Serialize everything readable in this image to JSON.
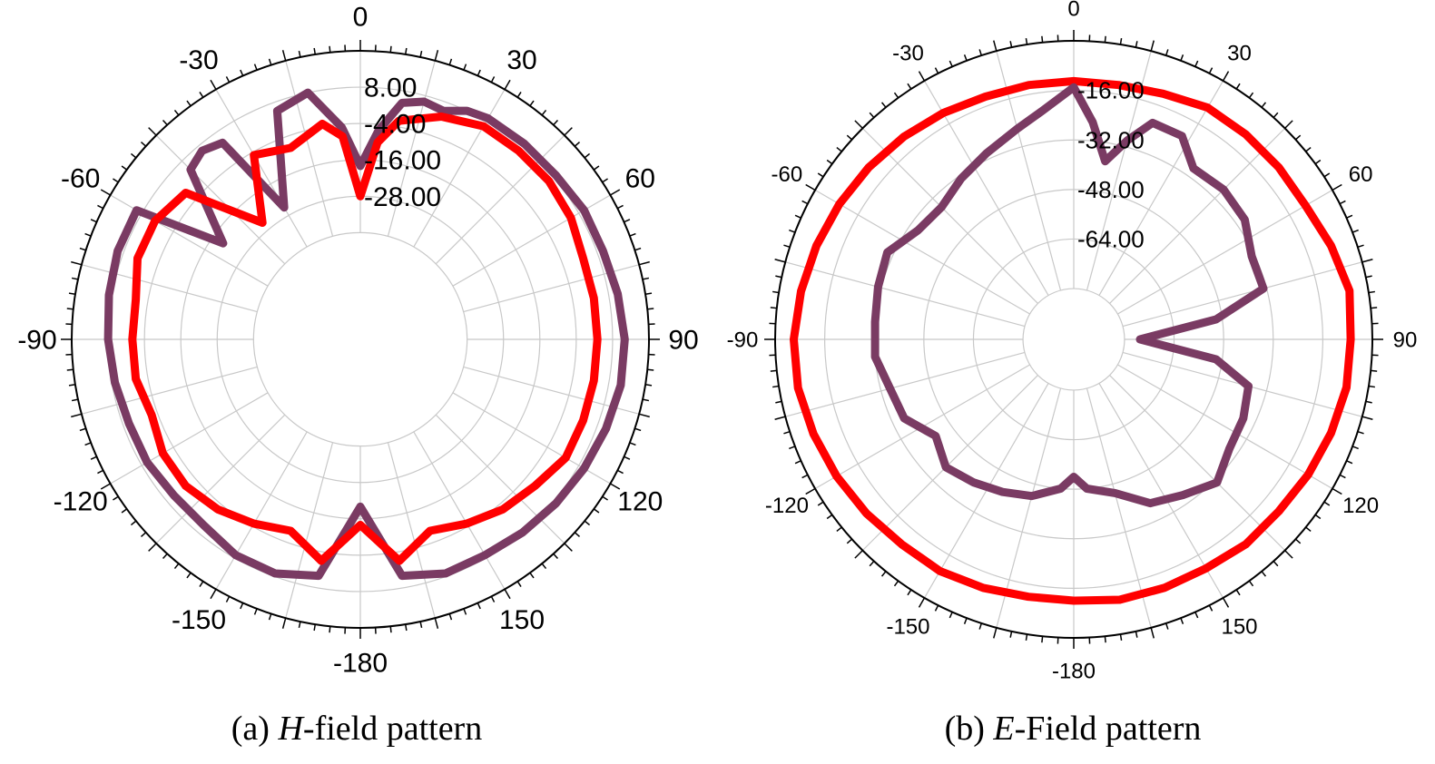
{
  "colors": {
    "red_series": "#ff0000",
    "purple_series": "#7a3b63",
    "grid": "#c8c8c8",
    "axis": "#000000"
  },
  "chart_data": [
    {
      "type": "polar-line",
      "caption": {
        "prefix": "(a) ",
        "italic": "H",
        "suffix": "-field pattern"
      },
      "angle_ticks": [
        "0",
        "30",
        "60",
        "90",
        "120",
        "150",
        "-180",
        "-150",
        "-120",
        "-90",
        "-60",
        "-30"
      ],
      "radial_labels": [
        "8.00",
        "-4.00",
        "-16.00",
        "-28.00"
      ],
      "radial_range": [
        -40,
        20
      ],
      "radial_ticks": [
        8,
        -4,
        -16,
        -28
      ],
      "grid": true,
      "series": [
        {
          "color_key": "purple_series",
          "points": [
            [
              0,
              -18
            ],
            [
              5,
              -6
            ],
            [
              10,
              4
            ],
            [
              15,
              6
            ],
            [
              20,
              5
            ],
            [
              25,
              8
            ],
            [
              30,
              9
            ],
            [
              40,
              9
            ],
            [
              50,
              9
            ],
            [
              60,
              10
            ],
            [
              70,
              10
            ],
            [
              80,
              11
            ],
            [
              90,
              12
            ],
            [
              100,
              12
            ],
            [
              110,
              11
            ],
            [
              120,
              10
            ],
            [
              130,
              9
            ],
            [
              140,
              8
            ],
            [
              150,
              7
            ],
            [
              160,
              7
            ],
            [
              170,
              4
            ],
            [
              180,
              -20
            ],
            [
              -170,
              4
            ],
            [
              -160,
              7
            ],
            [
              -150,
              7
            ],
            [
              -140,
              5
            ],
            [
              -130,
              5
            ],
            [
              -120,
              6
            ],
            [
              -110,
              6
            ],
            [
              -100,
              7
            ],
            [
              -90,
              8
            ],
            [
              -80,
              9
            ],
            [
              -70,
              10
            ],
            [
              -60,
              10
            ],
            [
              -55,
              -20
            ],
            [
              -45,
              4
            ],
            [
              -40,
              6
            ],
            [
              -35,
              4
            ],
            [
              -30,
              -25
            ],
            [
              -20,
              5
            ],
            [
              -12,
              8
            ],
            [
              -5,
              -5
            ]
          ]
        },
        {
          "color_key": "red_series",
          "points": [
            [
              0,
              -28
            ],
            [
              5,
              -10
            ],
            [
              10,
              -2
            ],
            [
              20,
              3
            ],
            [
              30,
              6
            ],
            [
              40,
              6
            ],
            [
              50,
              6
            ],
            [
              60,
              5
            ],
            [
              70,
              3
            ],
            [
              80,
              3
            ],
            [
              90,
              3
            ],
            [
              100,
              3
            ],
            [
              110,
              3
            ],
            [
              120,
              3
            ],
            [
              130,
              0
            ],
            [
              140,
              -2
            ],
            [
              150,
              -5
            ],
            [
              160,
              -8
            ],
            [
              170,
              -1
            ],
            [
              180,
              -14
            ],
            [
              -170,
              -1
            ],
            [
              -160,
              -8
            ],
            [
              -150,
              -5
            ],
            [
              -140,
              -2
            ],
            [
              -130,
              0
            ],
            [
              -120,
              0
            ],
            [
              -110,
              -2
            ],
            [
              -100,
              0
            ],
            [
              -90,
              0
            ],
            [
              -80,
              0
            ],
            [
              -70,
              3
            ],
            [
              -60,
              3
            ],
            [
              -50,
              0
            ],
            [
              -40,
              -25
            ],
            [
              -30,
              -5
            ],
            [
              -20,
              -8
            ],
            [
              -10,
              -3
            ],
            [
              -5,
              -8
            ]
          ]
        }
      ]
    },
    {
      "type": "polar-line",
      "caption": {
        "prefix": "(b) ",
        "italic": "E",
        "suffix": "-Field pattern"
      },
      "angle_ticks": [
        "0",
        "30",
        "60",
        "90",
        "120",
        "150",
        "-180",
        "-150",
        "-120",
        "-90",
        "-60",
        "-30"
      ],
      "radial_labels": [
        "-16.00",
        "-32.00",
        "-48.00",
        "-64.00"
      ],
      "radial_range": [
        -80,
        0
      ],
      "radial_ticks": [
        -16,
        -32,
        -48,
        -64
      ],
      "grid": true,
      "series": [
        {
          "color_key": "red_series",
          "points": [
            [
              0,
              -13
            ],
            [
              10,
              -13
            ],
            [
              20,
              -12
            ],
            [
              30,
              -10
            ],
            [
              40,
              -10
            ],
            [
              50,
              -10
            ],
            [
              60,
              -10
            ],
            [
              70,
              -8
            ],
            [
              80,
              -6
            ],
            [
              90,
              -7
            ],
            [
              100,
              -7
            ],
            [
              110,
              -8
            ],
            [
              120,
              -9
            ],
            [
              130,
              -10
            ],
            [
              140,
              -10
            ],
            [
              150,
              -11
            ],
            [
              160,
              -11
            ],
            [
              170,
              -11
            ],
            [
              180,
              -12
            ],
            [
              -170,
              -12
            ],
            [
              -160,
              -11
            ],
            [
              -150,
              -10
            ],
            [
              -140,
              -10
            ],
            [
              -130,
              -9
            ],
            [
              -120,
              -8
            ],
            [
              -110,
              -7
            ],
            [
              -100,
              -6
            ],
            [
              -90,
              -6
            ],
            [
              -80,
              -7
            ],
            [
              -70,
              -8
            ],
            [
              -60,
              -9
            ],
            [
              -50,
              -10
            ],
            [
              -40,
              -11
            ],
            [
              -30,
              -12
            ],
            [
              -20,
              -13
            ],
            [
              -10,
              -13
            ]
          ]
        },
        {
          "color_key": "purple_series",
          "points": [
            [
              0,
              -15
            ],
            [
              5,
              -26
            ],
            [
              10,
              -38
            ],
            [
              15,
              -30
            ],
            [
              20,
              -22
            ],
            [
              28,
              -22
            ],
            [
              35,
              -29
            ],
            [
              45,
              -28
            ],
            [
              55,
              -29
            ],
            [
              65,
              -33
            ],
            [
              75,
              -33
            ],
            [
              82,
              -50
            ],
            [
              90,
              -75
            ],
            [
              98,
              -50
            ],
            [
              105,
              -38
            ],
            [
              115,
              -36
            ],
            [
              125,
              -35
            ],
            [
              135,
              -31
            ],
            [
              145,
              -35
            ],
            [
              155,
              -38
            ],
            [
              165,
              -45
            ],
            [
              175,
              -48
            ],
            [
              180,
              -52
            ],
            [
              -175,
              -48
            ],
            [
              -165,
              -44
            ],
            [
              -155,
              -42
            ],
            [
              -145,
              -40
            ],
            [
              -135,
              -38
            ],
            [
              -125,
              -42
            ],
            [
              -115,
              -36
            ],
            [
              -105,
              -35
            ],
            [
              -95,
              -32
            ],
            [
              -85,
              -32
            ],
            [
              -75,
              -31
            ],
            [
              -65,
              -30
            ],
            [
              -55,
              -35
            ],
            [
              -45,
              -36
            ],
            [
              -35,
              -33
            ],
            [
              -25,
              -30
            ],
            [
              -15,
              -26
            ],
            [
              -8,
              -22
            ]
          ]
        }
      ]
    }
  ]
}
